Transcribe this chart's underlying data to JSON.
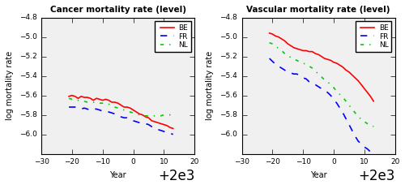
{
  "title_left": "Cancer mortality rate (level)",
  "title_right": "Vascular mortality rate (level)",
  "xlabel": "Year",
  "ylabel": "log mortality rate",
  "xlim": [
    1970,
    2020
  ],
  "ylim": [
    -6.2,
    -4.8
  ],
  "yticks": [
    -6.0,
    -5.8,
    -5.6,
    -5.4,
    -5.2,
    -5.0,
    -4.8
  ],
  "xticks": [
    1970,
    1980,
    1990,
    2000,
    2010,
    2020
  ],
  "colors": {
    "BE": "#ff0000",
    "FR": "#0000ff",
    "NL": "#00cc00"
  },
  "linestyles": {
    "BE": "-",
    "FR": "--",
    "NL": "-."
  },
  "linewidths": {
    "BE": 1.2,
    "FR": 1.2,
    "NL": 1.2
  },
  "legend_labels": [
    "BE",
    "FR",
    "NL"
  ],
  "bg_color": "#f0f0f0",
  "cancer": {
    "BE": {
      "x": [
        1979,
        1980,
        1981,
        1982,
        1983,
        1984,
        1985,
        1986,
        1987,
        1988,
        1989,
        1990,
        1991,
        1992,
        1993,
        1994,
        1995,
        1996,
        1997,
        1998,
        1999,
        2000,
        2001,
        2002,
        2003,
        2004,
        2005,
        2006,
        2007,
        2008,
        2009,
        2010,
        2011,
        2012,
        2013
      ],
      "y": [
        -5.61,
        -5.6,
        -5.61,
        -5.63,
        -5.61,
        -5.62,
        -5.62,
        -5.63,
        -5.65,
        -5.63,
        -5.64,
        -5.65,
        -5.64,
        -5.65,
        -5.67,
        -5.67,
        -5.68,
        -5.7,
        -5.72,
        -5.72,
        -5.73,
        -5.75,
        -5.77,
        -5.79,
        -5.8,
        -5.82,
        -5.83,
        -5.86,
        -5.87,
        -5.88,
        -5.89,
        -5.9,
        -5.91,
        -5.93,
        -5.94
      ]
    },
    "FR": {
      "x": [
        1979,
        1980,
        1981,
        1982,
        1983,
        1984,
        1985,
        1986,
        1987,
        1988,
        1989,
        1990,
        1991,
        1992,
        1993,
        1994,
        1995,
        1996,
        1997,
        1998,
        1999,
        2000,
        2001,
        2002,
        2003,
        2004,
        2005,
        2006,
        2007,
        2008,
        2009,
        2010,
        2011,
        2012,
        2013
      ],
      "y": [
        -5.72,
        -5.72,
        -5.72,
        -5.73,
        -5.74,
        -5.73,
        -5.74,
        -5.75,
        -5.74,
        -5.74,
        -5.75,
        -5.76,
        -5.77,
        -5.77,
        -5.78,
        -5.79,
        -5.8,
        -5.82,
        -5.83,
        -5.83,
        -5.84,
        -5.86,
        -5.87,
        -5.88,
        -5.88,
        -5.89,
        -5.9,
        -5.92,
        -5.93,
        -5.95,
        -5.96,
        -5.97,
        -5.98,
        -5.99,
        -6.0
      ]
    },
    "NL": {
      "x": [
        1979,
        1980,
        1981,
        1982,
        1983,
        1984,
        1985,
        1986,
        1987,
        1988,
        1989,
        1990,
        1991,
        1992,
        1993,
        1994,
        1995,
        1996,
        1997,
        1998,
        1999,
        2000,
        2001,
        2002,
        2003,
        2004,
        2005,
        2006,
        2007,
        2008,
        2009,
        2010,
        2011,
        2012,
        2013
      ],
      "y": [
        -5.63,
        -5.64,
        -5.64,
        -5.65,
        -5.65,
        -5.66,
        -5.67,
        -5.67,
        -5.67,
        -5.67,
        -5.68,
        -5.68,
        -5.68,
        -5.69,
        -5.7,
        -5.72,
        -5.73,
        -5.74,
        -5.75,
        -5.76,
        -5.77,
        -5.78,
        -5.79,
        -5.8,
        -5.8,
        -5.81,
        -5.81,
        -5.81,
        -5.81,
        -5.81,
        -5.81,
        -5.8,
        -5.8,
        -5.8,
        -5.8
      ]
    }
  },
  "vascular": {
    "BE": {
      "x": [
        1979,
        1980,
        1981,
        1982,
        1983,
        1984,
        1985,
        1986,
        1987,
        1988,
        1989,
        1990,
        1991,
        1992,
        1993,
        1994,
        1995,
        1996,
        1997,
        1998,
        1999,
        2000,
        2001,
        2002,
        2003,
        2004,
        2005,
        2006,
        2007,
        2008,
        2009,
        2010,
        2011,
        2012,
        2013
      ],
      "y": [
        -4.96,
        -4.97,
        -4.99,
        -5.0,
        -5.02,
        -5.04,
        -5.07,
        -5.09,
        -5.11,
        -5.12,
        -5.13,
        -5.14,
        -5.14,
        -5.15,
        -5.15,
        -5.17,
        -5.18,
        -5.2,
        -5.22,
        -5.23,
        -5.24,
        -5.26,
        -5.27,
        -5.29,
        -5.31,
        -5.34,
        -5.36,
        -5.39,
        -5.42,
        -5.45,
        -5.49,
        -5.53,
        -5.57,
        -5.61,
        -5.66
      ]
    },
    "FR": {
      "x": [
        1979,
        1980,
        1981,
        1982,
        1983,
        1984,
        1985,
        1986,
        1987,
        1988,
        1989,
        1990,
        1991,
        1992,
        1993,
        1994,
        1995,
        1996,
        1997,
        1998,
        1999,
        2000,
        2001,
        2002,
        2003,
        2004,
        2005,
        2006,
        2007,
        2008,
        2009,
        2010,
        2011,
        2012,
        2013
      ],
      "y": [
        -5.22,
        -5.25,
        -5.28,
        -5.3,
        -5.32,
        -5.34,
        -5.36,
        -5.37,
        -5.38,
        -5.38,
        -5.4,
        -5.42,
        -5.43,
        -5.46,
        -5.47,
        -5.49,
        -5.51,
        -5.53,
        -5.55,
        -5.57,
        -5.6,
        -5.64,
        -5.68,
        -5.73,
        -5.78,
        -5.84,
        -5.9,
        -5.96,
        -6.02,
        -6.07,
        -6.1,
        -6.13,
        -6.15,
        -6.18,
        -6.2
      ]
    },
    "NL": {
      "x": [
        1979,
        1980,
        1981,
        1982,
        1983,
        1984,
        1985,
        1986,
        1987,
        1988,
        1989,
        1990,
        1991,
        1992,
        1993,
        1994,
        1995,
        1996,
        1997,
        1998,
        1999,
        2000,
        2001,
        2002,
        2003,
        2004,
        2005,
        2006,
        2007,
        2008,
        2009,
        2010,
        2011,
        2012,
        2013
      ],
      "y": [
        -5.06,
        -5.07,
        -5.09,
        -5.12,
        -5.14,
        -5.17,
        -5.19,
        -5.21,
        -5.23,
        -5.24,
        -5.26,
        -5.27,
        -5.28,
        -5.3,
        -5.32,
        -5.35,
        -5.38,
        -5.41,
        -5.44,
        -5.46,
        -5.49,
        -5.52,
        -5.56,
        -5.59,
        -5.62,
        -5.66,
        -5.7,
        -5.74,
        -5.78,
        -5.81,
        -5.85,
        -5.87,
        -5.89,
        -5.9,
        -5.92
      ]
    }
  }
}
